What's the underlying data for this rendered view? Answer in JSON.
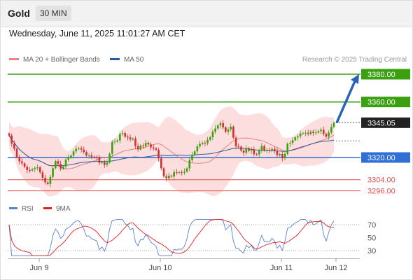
{
  "header": {
    "symbol": "Gold",
    "timeframe": "30 MIN"
  },
  "datetime": "Wednesday, June 11, 2025 11:01:27 AM CET",
  "legend": {
    "ma20": "MA 20 + Bollinger Bands",
    "ma20_color": "#f08080",
    "ma50": "MA 50",
    "ma50_color": "#2c5a9a"
  },
  "credit": "Research © 2025 Trading Central",
  "rsi_legend": {
    "rsi": "RSI",
    "rsi_color": "#5b7fd1",
    "ma9": "9MA",
    "ma9_color": "#e02020"
  },
  "colors": {
    "green": "#3aa010",
    "blue": "#2f6fd6",
    "red_level": "#e05050",
    "up_candle": "#3aa010",
    "down_candle": "#d23030",
    "band_fill": "#fdd8d8"
  },
  "chart_data": {
    "type": "candlestick",
    "price_levels": [
      {
        "value": 3380.0,
        "label": "3380.00",
        "kind": "resistance"
      },
      {
        "value": 3360.0,
        "label": "3360.00",
        "kind": "resistance"
      },
      {
        "value": 3345.05,
        "label": "3345.05",
        "kind": "current"
      },
      {
        "value": 3320.0,
        "label": "3320.00",
        "kind": "pivot"
      },
      {
        "value": 3304.0,
        "label": "3304.00",
        "kind": "support"
      },
      {
        "value": 3296.0,
        "label": "3296.00",
        "kind": "support"
      }
    ],
    "x_tick_labels": [
      "Jun 9",
      "Jun 10",
      "Jun 11",
      "Jun 12"
    ],
    "closes": [
      3335.8,
      3330.0,
      3326.3,
      3320.4,
      3317.2,
      3315.8,
      3313.3,
      3310.9,
      3310.6,
      3311.6,
      3312.3,
      3312.9,
      3309.3,
      3305.4,
      3302.1,
      3300.9,
      3306.0,
      3312.3,
      3317.4,
      3315.5,
      3311.9,
      3313.6,
      3318.5,
      3319.9,
      3321.4,
      3324.4,
      3326.3,
      3326.7,
      3325.7,
      3324.0,
      3321.4,
      3321.6,
      3320.5,
      3320.1,
      3319.8,
      3316.1,
      3316.8,
      3314.7,
      3316.4,
      3322.7,
      3331.0,
      3331.5,
      3332.3,
      3336.9,
      3337.6,
      3335.0,
      3334.4,
      3333.0,
      3333.7,
      3328.2,
      3325.8,
      3328.6,
      3328.3,
      3330.6,
      3329.5,
      3327.3,
      3326.5,
      3325.5,
      3319.4,
      3312.2,
      3306.4,
      3305.1,
      3306.9,
      3306.3,
      3309.5,
      3309.0,
      3309.3,
      3309.1,
      3309.9,
      3312.2,
      3318.1,
      3321.9,
      3324.4,
      3328.0,
      3329.8,
      3330.6,
      3330.3,
      3332.7,
      3334.6,
      3338.6,
      3340.9,
      3343.1,
      3344.7,
      3341.7,
      3338.5,
      3340.2,
      3342.2,
      3334.3,
      3328.1,
      3327.8,
      3325.0,
      3323.4,
      3326.7,
      3324.8,
      3325.7,
      3322.4,
      3322.2,
      3324.8,
      3328.3,
      3325.1,
      3325.1,
      3324.8,
      3326.2,
      3325.0,
      3321.6,
      3322.5,
      3319.5,
      3322.6,
      3329.9,
      3330.5,
      3332.5,
      3334.5,
      3335.3,
      3337.2,
      3337.5,
      3337.8,
      3337.0,
      3338.6,
      3337.7,
      3338.0,
      3339.0,
      3340.0,
      3337.0,
      3335.0,
      3338.0,
      3342.0,
      3345.05
    ],
    "rsi": {
      "ticks": [
        "70",
        "50",
        "30"
      ],
      "range": [
        20,
        80
      ]
    }
  }
}
